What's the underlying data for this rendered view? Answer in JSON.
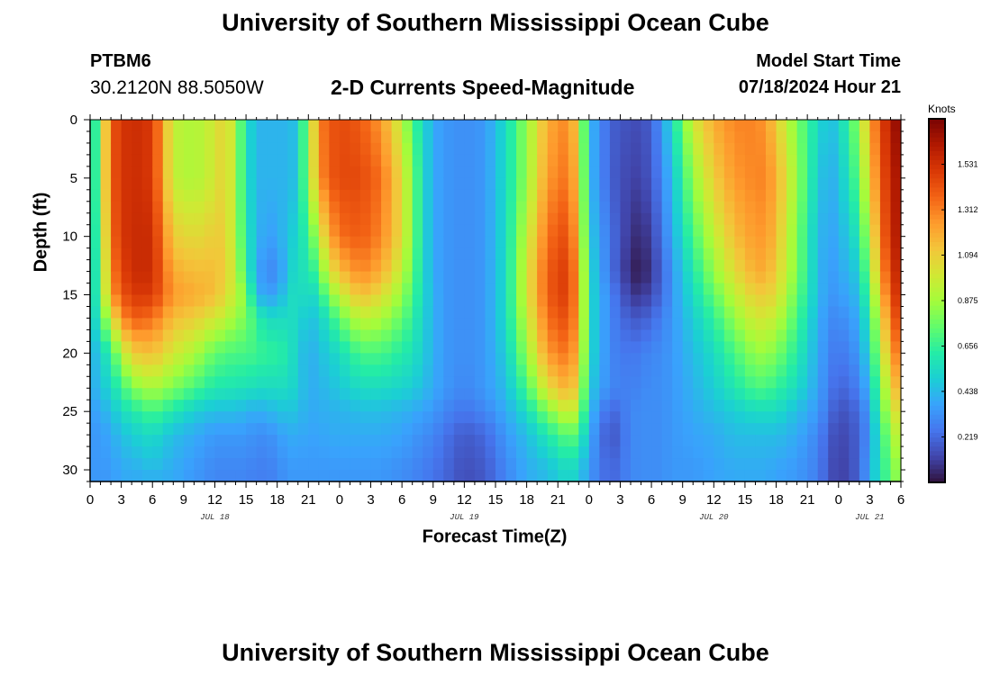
{
  "header": {
    "title_top": "University of Southern Mississippi Ocean Cube",
    "title_bottom": "University of Southern Mississippi Ocean Cube",
    "station_id": "PTBM6",
    "coordinates": "30.2120N  88.5050W",
    "model_start_label": "Model Start Time",
    "model_start_value": "07/18/2024 Hour 21"
  },
  "chart_data": {
    "type": "heatmap",
    "title": "2-D Currents Speed-Magnitude",
    "xlabel": "Forecast Time(Z)",
    "ylabel": "Depth (ft)",
    "x_unit": "hours from 00Z Jul 18",
    "xlim": [
      0,
      78
    ],
    "ylim": [
      0,
      31
    ],
    "y_inverted": true,
    "x_tick_labels": [
      "0",
      "3",
      "6",
      "9",
      "12",
      "15",
      "18",
      "21",
      "0",
      "3",
      "6",
      "9",
      "12",
      "15",
      "18",
      "21",
      "0",
      "3",
      "6",
      "9",
      "12",
      "15",
      "18",
      "21",
      "0",
      "3",
      "6"
    ],
    "y_ticks": [
      0,
      5,
      10,
      15,
      20,
      25,
      30
    ],
    "date_labels": [
      {
        "hour": 12,
        "label": "JUL 18"
      },
      {
        "hour": 36,
        "label": "JUL 19"
      },
      {
        "hour": 60,
        "label": "JUL 20"
      },
      {
        "hour": 75,
        "label": "JUL 21"
      }
    ],
    "colorbar": {
      "units": "Knots",
      "min": 0.0,
      "max": 1.75,
      "tick_values": [
        0.219,
        0.438,
        0.656,
        0.875,
        1.094,
        1.312,
        1.531
      ],
      "colors": [
        "#30123b",
        "#4145ab",
        "#4675ed",
        "#39a2fc",
        "#1bcfd4",
        "#24eca6",
        "#61fc6c",
        "#a4fc3b",
        "#d1e834",
        "#f3c63a",
        "#fe9b2d",
        "#f36315",
        "#d93806",
        "#b11901",
        "#7a0403"
      ]
    },
    "z_description": "current speed magnitude (knots) vs forecast hour and depth (ft)",
    "speed_samples": {
      "hours": [
        0,
        1,
        2,
        3,
        4,
        6,
        8,
        10,
        12,
        13,
        14,
        15,
        16,
        17,
        18,
        19,
        20,
        21,
        22,
        23,
        24,
        26,
        28,
        30,
        31,
        32,
        33,
        34,
        36,
        38,
        40,
        42,
        44,
        46,
        47,
        48,
        50,
        52,
        53,
        54,
        55,
        56,
        58,
        60,
        62,
        64,
        65,
        66,
        68,
        70,
        71,
        72,
        74,
        75,
        76,
        77,
        78
      ],
      "depths": [
        0,
        5,
        10,
        13,
        15,
        17,
        20,
        23,
        25,
        27,
        30,
        31
      ],
      "values": [
        [
          0.45,
          0.45,
          0.45,
          0.45,
          0.45,
          0.45,
          0.4,
          0.4,
          0.35,
          0.35,
          0.35,
          0.35
        ],
        [
          0.85,
          0.85,
          0.8,
          0.75,
          0.75,
          0.65,
          0.5,
          0.45,
          0.4,
          0.35,
          0.35,
          0.35
        ],
        [
          1.4,
          1.4,
          1.35,
          1.3,
          1.25,
          1.0,
          0.65,
          0.55,
          0.45,
          0.4,
          0.35,
          0.35
        ],
        [
          1.5,
          1.5,
          1.5,
          1.45,
          1.4,
          1.25,
          0.9,
          0.65,
          0.55,
          0.45,
          0.4,
          0.4
        ],
        [
          1.55,
          1.55,
          1.55,
          1.55,
          1.5,
          1.4,
          1.1,
          0.8,
          0.6,
          0.5,
          0.4,
          0.4
        ],
        [
          1.5,
          1.5,
          1.55,
          1.55,
          1.5,
          1.35,
          1.15,
          0.9,
          0.7,
          0.55,
          0.45,
          0.4
        ],
        [
          0.95,
          0.95,
          1.1,
          1.2,
          1.25,
          1.15,
          1.0,
          0.8,
          0.6,
          0.45,
          0.4,
          0.4
        ],
        [
          0.9,
          0.9,
          1.05,
          1.15,
          1.2,
          1.1,
          0.9,
          0.7,
          0.5,
          0.4,
          0.35,
          0.35
        ],
        [
          1.0,
          1.0,
          1.1,
          1.15,
          1.15,
          1.0,
          0.75,
          0.6,
          0.45,
          0.35,
          0.3,
          0.3
        ],
        [
          1.1,
          1.1,
          1.1,
          1.1,
          1.05,
          0.95,
          0.72,
          0.6,
          0.45,
          0.35,
          0.3,
          0.3
        ],
        [
          0.9,
          0.9,
          0.9,
          0.95,
          0.95,
          0.85,
          0.7,
          0.58,
          0.45,
          0.35,
          0.3,
          0.3
        ],
        [
          0.55,
          0.55,
          0.6,
          0.65,
          0.8,
          0.8,
          0.7,
          0.58,
          0.42,
          0.35,
          0.3,
          0.3
        ],
        [
          0.45,
          0.45,
          0.45,
          0.4,
          0.45,
          0.65,
          0.68,
          0.55,
          0.4,
          0.32,
          0.28,
          0.28
        ],
        [
          0.4,
          0.4,
          0.35,
          0.3,
          0.35,
          0.55,
          0.65,
          0.55,
          0.42,
          0.32,
          0.28,
          0.28
        ],
        [
          0.45,
          0.45,
          0.4,
          0.32,
          0.4,
          0.55,
          0.65,
          0.55,
          0.45,
          0.35,
          0.3,
          0.3
        ],
        [
          0.4,
          0.4,
          0.45,
          0.45,
          0.5,
          0.55,
          0.6,
          0.55,
          0.48,
          0.4,
          0.35,
          0.35
        ],
        [
          0.5,
          0.5,
          0.55,
          0.6,
          0.6,
          0.55,
          0.5,
          0.5,
          0.45,
          0.4,
          0.35,
          0.35
        ],
        [
          0.85,
          0.85,
          0.65,
          0.55,
          0.5,
          0.45,
          0.4,
          0.4,
          0.4,
          0.38,
          0.35,
          0.35
        ],
        [
          1.3,
          1.25,
          0.95,
          0.75,
          0.6,
          0.5,
          0.45,
          0.42,
          0.4,
          0.38,
          0.35,
          0.35
        ],
        [
          1.4,
          1.4,
          1.2,
          1.0,
          0.8,
          0.6,
          0.5,
          0.45,
          0.42,
          0.4,
          0.35,
          0.35
        ],
        [
          1.45,
          1.45,
          1.35,
          1.15,
          0.95,
          0.75,
          0.55,
          0.48,
          0.42,
          0.4,
          0.35,
          0.35
        ],
        [
          1.4,
          1.45,
          1.4,
          1.3,
          1.15,
          0.95,
          0.7,
          0.55,
          0.45,
          0.4,
          0.35,
          0.35
        ],
        [
          1.25,
          1.35,
          1.3,
          1.2,
          1.05,
          0.9,
          0.7,
          0.55,
          0.45,
          0.4,
          0.35,
          0.35
        ],
        [
          0.95,
          1.05,
          1.05,
          0.95,
          0.85,
          0.75,
          0.62,
          0.52,
          0.42,
          0.38,
          0.32,
          0.32
        ],
        [
          0.7,
          0.8,
          0.8,
          0.75,
          0.7,
          0.65,
          0.58,
          0.5,
          0.4,
          0.35,
          0.3,
          0.3
        ],
        [
          0.55,
          0.55,
          0.55,
          0.55,
          0.55,
          0.52,
          0.5,
          0.45,
          0.38,
          0.32,
          0.28,
          0.28
        ],
        [
          0.4,
          0.4,
          0.4,
          0.4,
          0.42,
          0.42,
          0.42,
          0.4,
          0.35,
          0.3,
          0.25,
          0.25
        ],
        [
          0.35,
          0.35,
          0.35,
          0.35,
          0.35,
          0.35,
          0.35,
          0.35,
          0.3,
          0.25,
          0.22,
          0.22
        ],
        [
          0.32,
          0.32,
          0.32,
          0.32,
          0.32,
          0.32,
          0.32,
          0.3,
          0.25,
          0.18,
          0.15,
          0.15
        ],
        [
          0.35,
          0.35,
          0.35,
          0.35,
          0.35,
          0.35,
          0.35,
          0.35,
          0.3,
          0.22,
          0.18,
          0.18
        ],
        [
          0.55,
          0.55,
          0.55,
          0.55,
          0.55,
          0.55,
          0.5,
          0.45,
          0.4,
          0.35,
          0.3,
          0.3
        ],
        [
          0.85,
          0.85,
          0.95,
          1.0,
          1.0,
          0.95,
          0.85,
          0.7,
          0.55,
          0.45,
          0.4,
          0.4
        ],
        [
          1.2,
          1.25,
          1.35,
          1.4,
          1.4,
          1.35,
          1.25,
          1.05,
          0.8,
          0.6,
          0.45,
          0.45
        ],
        [
          1.3,
          1.35,
          1.45,
          1.5,
          1.5,
          1.45,
          1.35,
          1.2,
          1.0,
          0.75,
          0.55,
          0.55
        ],
        [
          1.05,
          1.1,
          1.15,
          1.2,
          1.2,
          1.2,
          1.15,
          1.05,
          0.9,
          0.7,
          0.5,
          0.5
        ],
        [
          0.45,
          0.45,
          0.5,
          0.55,
          0.55,
          0.55,
          0.55,
          0.5,
          0.45,
          0.4,
          0.35,
          0.35
        ],
        [
          0.2,
          0.2,
          0.25,
          0.25,
          0.3,
          0.3,
          0.3,
          0.3,
          0.2,
          0.15,
          0.2,
          0.2
        ],
        [
          0.15,
          0.12,
          0.08,
          0.05,
          0.1,
          0.18,
          0.25,
          0.28,
          0.3,
          0.3,
          0.3,
          0.3
        ],
        [
          0.15,
          0.12,
          0.06,
          0.02,
          0.08,
          0.18,
          0.28,
          0.3,
          0.32,
          0.32,
          0.32,
          0.32
        ],
        [
          0.2,
          0.18,
          0.12,
          0.1,
          0.15,
          0.22,
          0.3,
          0.32,
          0.32,
          0.32,
          0.32,
          0.32
        ],
        [
          0.35,
          0.3,
          0.25,
          0.2,
          0.22,
          0.28,
          0.32,
          0.32,
          0.32,
          0.32,
          0.32,
          0.32
        ],
        [
          0.55,
          0.45,
          0.4,
          0.35,
          0.35,
          0.35,
          0.35,
          0.35,
          0.35,
          0.35,
          0.35,
          0.35
        ],
        [
          1.0,
          0.85,
          0.7,
          0.6,
          0.55,
          0.5,
          0.45,
          0.42,
          0.4,
          0.38,
          0.35,
          0.35
        ],
        [
          1.2,
          1.1,
          0.95,
          0.85,
          0.75,
          0.65,
          0.55,
          0.5,
          0.45,
          0.4,
          0.38,
          0.38
        ],
        [
          1.3,
          1.25,
          1.15,
          1.05,
          0.95,
          0.85,
          0.7,
          0.6,
          0.5,
          0.45,
          0.4,
          0.4
        ],
        [
          1.3,
          1.3,
          1.25,
          1.2,
          1.1,
          1.0,
          0.85,
          0.7,
          0.55,
          0.45,
          0.4,
          0.4
        ],
        [
          1.25,
          1.3,
          1.25,
          1.2,
          1.1,
          1.0,
          0.85,
          0.7,
          0.55,
          0.45,
          0.4,
          0.4
        ],
        [
          1.1,
          1.2,
          1.15,
          1.1,
          1.05,
          0.95,
          0.8,
          0.65,
          0.55,
          0.45,
          0.38,
          0.38
        ],
        [
          0.8,
          0.85,
          0.8,
          0.8,
          0.75,
          0.7,
          0.62,
          0.55,
          0.45,
          0.4,
          0.35,
          0.35
        ],
        [
          0.55,
          0.5,
          0.45,
          0.45,
          0.45,
          0.42,
          0.4,
          0.38,
          0.35,
          0.3,
          0.28,
          0.28
        ],
        [
          0.45,
          0.4,
          0.38,
          0.35,
          0.35,
          0.32,
          0.3,
          0.28,
          0.25,
          0.2,
          0.18,
          0.18
        ],
        [
          0.5,
          0.45,
          0.4,
          0.38,
          0.35,
          0.3,
          0.25,
          0.2,
          0.15,
          0.12,
          0.1,
          0.1
        ],
        [
          0.85,
          0.75,
          0.6,
          0.5,
          0.45,
          0.4,
          0.35,
          0.28,
          0.22,
          0.2,
          0.2,
          0.2
        ],
        [
          1.2,
          1.1,
          0.95,
          0.85,
          0.75,
          0.65,
          0.55,
          0.45,
          0.38,
          0.35,
          0.4,
          0.4
        ],
        [
          1.45,
          1.4,
          1.3,
          1.2,
          1.1,
          1.0,
          0.9,
          0.78,
          0.7,
          0.62,
          0.6,
          0.6
        ],
        [
          1.6,
          1.55,
          1.55,
          1.5,
          1.45,
          1.35,
          1.2,
          1.05,
          0.95,
          0.85,
          0.75,
          0.75
        ],
        [
          1.75,
          1.7,
          1.65,
          1.6,
          1.55,
          1.5,
          1.4,
          1.25,
          1.1,
          1.0,
          0.9,
          0.9
        ]
      ]
    }
  }
}
